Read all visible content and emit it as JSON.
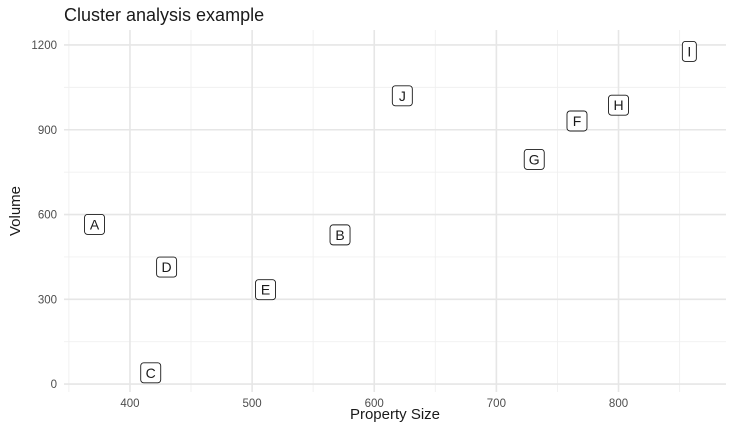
{
  "chart_data": {
    "type": "scatter",
    "title": "Cluster analysis example",
    "xlabel": "Property Size",
    "ylabel": "Volume",
    "xlim": [
      346,
      888
    ],
    "ylim": [
      -28,
      1253
    ],
    "x_ticks": [
      400,
      500,
      600,
      700,
      800
    ],
    "y_ticks": [
      0,
      300,
      600,
      900,
      1200
    ],
    "grid": true,
    "points": [
      {
        "label": "A",
        "x": 371,
        "y": 565
      },
      {
        "label": "B",
        "x": 572,
        "y": 528
      },
      {
        "label": "C",
        "x": 417,
        "y": 40
      },
      {
        "label": "D",
        "x": 430,
        "y": 414
      },
      {
        "label": "E",
        "x": 511,
        "y": 334
      },
      {
        "label": "F",
        "x": 766,
        "y": 931
      },
      {
        "label": "G",
        "x": 731,
        "y": 795
      },
      {
        "label": "H",
        "x": 800,
        "y": 987
      },
      {
        "label": "I",
        "x": 858,
        "y": 1177
      },
      {
        "label": "J",
        "x": 623,
        "y": 1020
      }
    ]
  }
}
